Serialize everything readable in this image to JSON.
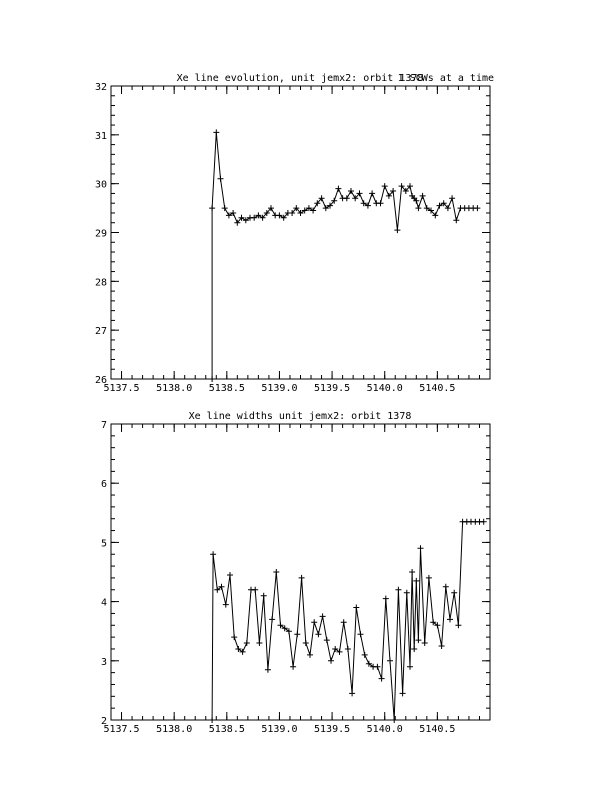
{
  "chart_data": [
    {
      "type": "line",
      "title": "Xe line evolution, unit jemx2: orbit 1378",
      "annotation": "1 SCWs at a time",
      "xlim": [
        5137.4,
        5141.0
      ],
      "ylim": [
        26,
        32
      ],
      "x_ticks": [
        "5137.5",
        "5138.0",
        "5138.5",
        "5139.0",
        "5139.5",
        "5140.0",
        "5140.5"
      ],
      "x_tick_values": [
        5137.5,
        5138.0,
        5138.5,
        5139.0,
        5139.5,
        5140.0,
        5140.5
      ],
      "y_ticks": [
        "26",
        "27",
        "28",
        "29",
        "30",
        "31",
        "32"
      ],
      "y_tick_values": [
        26,
        27,
        28,
        29,
        30,
        31,
        32
      ],
      "series": [
        {
          "x": [
            5138.36,
            5138.36,
            5138.4,
            5138.44,
            5138.48,
            5138.52,
            5138.56,
            5138.6,
            5138.64,
            5138.68,
            5138.72,
            5138.76,
            5138.8,
            5138.84,
            5138.88,
            5138.92,
            5138.96,
            5139.0,
            5139.04,
            5139.08,
            5139.12,
            5139.16,
            5139.2,
            5139.24,
            5139.28,
            5139.32,
            5139.36,
            5139.4,
            5139.44,
            5139.48,
            5139.52,
            5139.56,
            5139.6,
            5139.64,
            5139.68,
            5139.72,
            5139.76,
            5139.8,
            5139.84,
            5139.88,
            5139.92,
            5139.96,
            5140.0,
            5140.04,
            5140.08,
            5140.12,
            5140.16,
            5140.2,
            5140.24,
            5140.26,
            5140.28,
            5140.3,
            5140.32,
            5140.36,
            5140.4,
            5140.44,
            5140.48,
            5140.52,
            5140.56,
            5140.6,
            5140.64,
            5140.68,
            5140.72,
            5140.76,
            5140.8,
            5140.84,
            5140.88
          ],
          "y": [
            26.0,
            29.5,
            31.05,
            30.1,
            29.5,
            29.35,
            29.4,
            29.2,
            29.3,
            29.25,
            29.3,
            29.3,
            29.35,
            29.3,
            29.4,
            29.5,
            29.35,
            29.35,
            29.3,
            29.4,
            29.4,
            29.5,
            29.4,
            29.45,
            29.5,
            29.45,
            29.6,
            29.7,
            29.5,
            29.55,
            29.65,
            29.9,
            29.7,
            29.7,
            29.85,
            29.7,
            29.8,
            29.6,
            29.55,
            29.8,
            29.6,
            29.6,
            29.95,
            29.75,
            29.85,
            29.05,
            29.95,
            29.85,
            29.95,
            29.75,
            29.7,
            29.65,
            29.5,
            29.75,
            29.5,
            29.45,
            29.35,
            29.55,
            29.6,
            29.5,
            29.7,
            29.25,
            29.5,
            29.5,
            29.5,
            29.5,
            29.5
          ]
        }
      ]
    },
    {
      "type": "line",
      "title": "Xe line widths unit jemx2: orbit 1378",
      "xlim": [
        5137.4,
        5141.0
      ],
      "ylim": [
        2,
        7
      ],
      "x_ticks": [
        "5137.5",
        "5138.0",
        "5138.5",
        "5139.0",
        "5139.5",
        "5140.0",
        "5140.5"
      ],
      "x_tick_values": [
        5137.5,
        5138.0,
        5138.5,
        5139.0,
        5139.5,
        5140.0,
        5140.5
      ],
      "y_ticks": [
        "2",
        "3",
        "4",
        "5",
        "6",
        "7"
      ],
      "y_tick_values": [
        2,
        3,
        4,
        5,
        6,
        7
      ],
      "series": [
        {
          "x": [
            5138.36,
            5138.37,
            5138.41,
            5138.45,
            5138.49,
            5138.53,
            5138.57,
            5138.61,
            5138.65,
            5138.69,
            5138.73,
            5138.77,
            5138.81,
            5138.85,
            5138.89,
            5138.93,
            5138.97,
            5139.01,
            5139.05,
            5139.09,
            5139.13,
            5139.17,
            5139.21,
            5139.25,
            5139.29,
            5139.33,
            5139.37,
            5139.41,
            5139.45,
            5139.49,
            5139.53,
            5139.57,
            5139.61,
            5139.65,
            5139.69,
            5139.73,
            5139.77,
            5139.81,
            5139.85,
            5139.89,
            5139.93,
            5139.97,
            5140.01,
            5140.05,
            5140.09,
            5140.13,
            5140.17,
            5140.21,
            5140.24,
            5140.26,
            5140.28,
            5140.3,
            5140.32,
            5140.34,
            5140.38,
            5140.42,
            5140.46,
            5140.5,
            5140.54,
            5140.58,
            5140.62,
            5140.66,
            5140.7,
            5140.74,
            5140.78,
            5140.82,
            5140.86,
            5140.9,
            5140.94
          ],
          "y": [
            2.0,
            4.8,
            4.2,
            4.25,
            3.95,
            4.45,
            3.4,
            3.2,
            3.15,
            3.3,
            4.2,
            4.2,
            3.3,
            4.1,
            2.85,
            3.7,
            4.5,
            3.6,
            3.55,
            3.5,
            2.9,
            3.45,
            4.4,
            3.3,
            3.1,
            3.65,
            3.45,
            3.75,
            3.35,
            3.0,
            3.2,
            3.15,
            3.65,
            3.2,
            2.45,
            3.9,
            3.45,
            3.1,
            2.95,
            2.9,
            2.9,
            2.7,
            4.05,
            3.0,
            2.0,
            4.2,
            2.45,
            4.15,
            2.9,
            4.5,
            3.2,
            4.35,
            3.35,
            4.9,
            3.3,
            4.4,
            3.65,
            3.6,
            3.25,
            4.25,
            3.7,
            4.15,
            3.6,
            5.35,
            5.35,
            5.35,
            5.35,
            5.35,
            5.35
          ]
        }
      ]
    }
  ]
}
